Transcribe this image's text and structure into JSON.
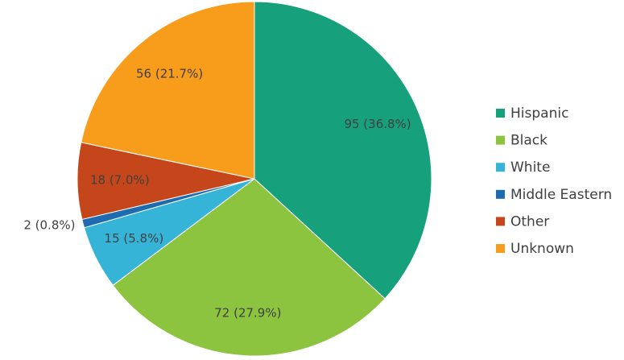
{
  "chart_data": {
    "type": "pie",
    "categories": [
      "Hispanic",
      "Black",
      "White",
      "Middle Eastern",
      "Other",
      "Unknown"
    ],
    "values": [
      95,
      72,
      15,
      2,
      18,
      56
    ],
    "value_labels": [
      "95 (36.8%)",
      "72 (27.9%)",
      "15 (5.8%)",
      "2 (0.8%)",
      "18 (7.0%)",
      "56 (21.7%)"
    ],
    "colors": [
      "#17a07c",
      "#8cc43f",
      "#35b4d8",
      "#1f6bb0",
      "#c4461a",
      "#f89c1c"
    ],
    "legend": "right"
  }
}
